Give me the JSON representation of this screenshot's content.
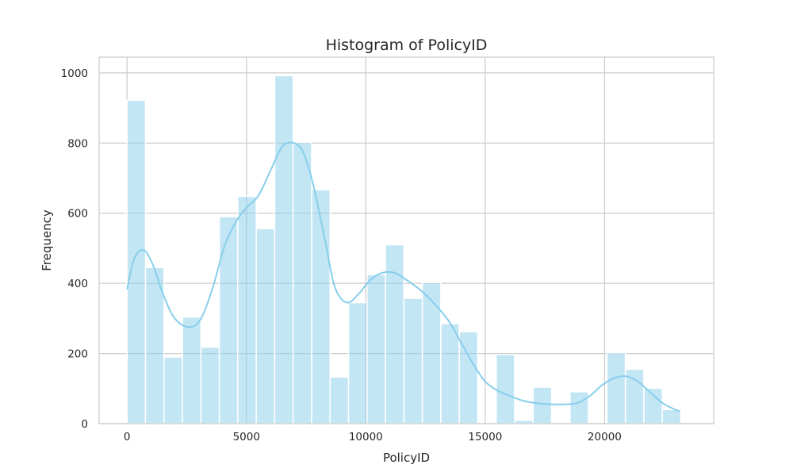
{
  "chart_data": {
    "type": "bar",
    "title": "Histogram of PolicyID",
    "xlabel": "PolicyID",
    "ylabel": "Frequency",
    "xlim": [
      -1170,
      24570
    ],
    "ylim": [
      0,
      1045
    ],
    "xticks": [
      0,
      5000,
      10000,
      15000,
      20000
    ],
    "yticks": [
      0,
      200,
      400,
      600,
      800,
      1000
    ],
    "grid": true,
    "bar_color": "#87CEEB",
    "kde_color": "#87CEEB",
    "bins": [
      {
        "start": 0,
        "end": 773,
        "count": 922
      },
      {
        "start": 773,
        "end": 1546,
        "count": 445
      },
      {
        "start": 1546,
        "end": 2319,
        "count": 190
      },
      {
        "start": 2319,
        "end": 3092,
        "count": 304
      },
      {
        "start": 3092,
        "end": 3865,
        "count": 218
      },
      {
        "start": 3865,
        "end": 4638,
        "count": 590
      },
      {
        "start": 4638,
        "end": 5411,
        "count": 648
      },
      {
        "start": 5411,
        "end": 6184,
        "count": 556
      },
      {
        "start": 6184,
        "end": 6957,
        "count": 992
      },
      {
        "start": 6957,
        "end": 7730,
        "count": 802
      },
      {
        "start": 7730,
        "end": 8503,
        "count": 667
      },
      {
        "start": 8503,
        "end": 9276,
        "count": 133
      },
      {
        "start": 9276,
        "end": 10049,
        "count": 345
      },
      {
        "start": 10049,
        "end": 10822,
        "count": 425
      },
      {
        "start": 10822,
        "end": 11595,
        "count": 510
      },
      {
        "start": 11595,
        "end": 12368,
        "count": 357
      },
      {
        "start": 12368,
        "end": 13141,
        "count": 402
      },
      {
        "start": 13141,
        "end": 13914,
        "count": 285
      },
      {
        "start": 13914,
        "end": 14687,
        "count": 262
      },
      {
        "start": 14687,
        "end": 15460,
        "count": 0
      },
      {
        "start": 15460,
        "end": 16233,
        "count": 197
      },
      {
        "start": 16233,
        "end": 17006,
        "count": 10
      },
      {
        "start": 17006,
        "end": 17779,
        "count": 104
      },
      {
        "start": 17779,
        "end": 18552,
        "count": 0
      },
      {
        "start": 18552,
        "end": 19325,
        "count": 91
      },
      {
        "start": 19325,
        "end": 20098,
        "count": 0
      },
      {
        "start": 20098,
        "end": 20871,
        "count": 202
      },
      {
        "start": 20871,
        "end": 21644,
        "count": 155
      },
      {
        "start": 21644,
        "end": 22417,
        "count": 101
      },
      {
        "start": 22417,
        "end": 23190,
        "count": 40
      }
    ],
    "kde": [
      [
        0,
        383
      ],
      [
        300,
        470
      ],
      [
        700,
        495
      ],
      [
        1100,
        450
      ],
      [
        1500,
        370
      ],
      [
        2000,
        300
      ],
      [
        2600,
        275
      ],
      [
        3100,
        300
      ],
      [
        3600,
        390
      ],
      [
        4100,
        510
      ],
      [
        4600,
        580
      ],
      [
        5000,
        615
      ],
      [
        5500,
        650
      ],
      [
        6000,
        720
      ],
      [
        6500,
        790
      ],
      [
        7000,
        800
      ],
      [
        7400,
        770
      ],
      [
        7800,
        680
      ],
      [
        8300,
        520
      ],
      [
        8700,
        390
      ],
      [
        9200,
        345
      ],
      [
        9700,
        370
      ],
      [
        10200,
        410
      ],
      [
        10700,
        430
      ],
      [
        11200,
        430
      ],
      [
        11700,
        410
      ],
      [
        12300,
        380
      ],
      [
        12900,
        340
      ],
      [
        13500,
        290
      ],
      [
        14000,
        230
      ],
      [
        14500,
        170
      ],
      [
        15000,
        120
      ],
      [
        15500,
        95
      ],
      [
        16000,
        80
      ],
      [
        16600,
        65
      ],
      [
        17200,
        58
      ],
      [
        17800,
        55
      ],
      [
        18400,
        55
      ],
      [
        18900,
        60
      ],
      [
        19400,
        80
      ],
      [
        19900,
        110
      ],
      [
        20400,
        130
      ],
      [
        20900,
        135
      ],
      [
        21400,
        120
      ],
      [
        21900,
        90
      ],
      [
        22400,
        60
      ],
      [
        22800,
        45
      ],
      [
        23150,
        35
      ]
    ]
  }
}
